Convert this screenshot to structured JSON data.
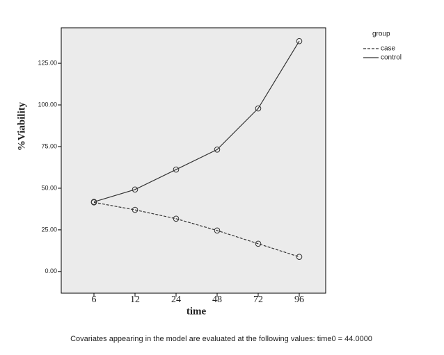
{
  "chart_data": {
    "type": "line",
    "y_label": "%Viability",
    "x_label": "time",
    "categories": [
      "6",
      "12",
      "24",
      "48",
      "72",
      "96"
    ],
    "series": [
      {
        "name": "case",
        "color": "#333333",
        "line_style": "dashed",
        "values": [
          41.5,
          37,
          31.7,
          24.6,
          16.7,
          8.8
        ]
      },
      {
        "name": "control",
        "color": "#333333",
        "line_style": "solid",
        "values": [
          41.8,
          49.2,
          61.2,
          73.2,
          97.9,
          138.3
        ]
      }
    ],
    "ylim": [
      -13,
      146.3
    ],
    "yticks": [
      {
        "value": 0,
        "label": "0.00"
      },
      {
        "value": 25,
        "label": "25.00"
      },
      {
        "value": 50,
        "label": "50.00"
      },
      {
        "value": 75,
        "label": "75.00"
      },
      {
        "value": 100,
        "label": "100.00"
      },
      {
        "value": 125,
        "label": "125.00"
      }
    ],
    "legend_title": "group",
    "legend_position": "right",
    "footnote": "Covariates appearing in the model are evaluated at the following values: time0 = 44.0000"
  }
}
